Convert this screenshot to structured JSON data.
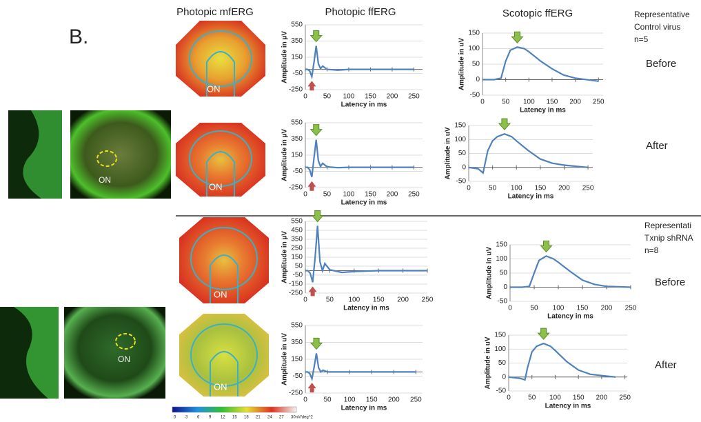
{
  "panel_label": "B.",
  "headers": [
    "Photopic mfERG",
    "Photopic ffERG",
    "Scotopic ffERG"
  ],
  "groups": [
    {
      "title": [
        "Representative",
        "Control virus",
        "n=5"
      ],
      "conditions": [
        "Before",
        "After"
      ]
    },
    {
      "title": [
        "Representati",
        "Txnip shRNA",
        "n=8"
      ],
      "conditions": [
        "Before",
        "After"
      ]
    }
  ],
  "photo_labels": [
    "ON",
    "ON"
  ],
  "heatmap_labels": [
    "ON",
    "ON",
    "ON",
    "ON"
  ],
  "colorbar_labels": [
    "0",
    "3",
    "6",
    "9",
    "12",
    "15",
    "18",
    "21",
    "24",
    "27",
    "30nV/deg^2"
  ],
  "chart_data": [
    {
      "type": "line",
      "ylabel": "Amplitude in µV",
      "xlabel": "Latency in ms",
      "x": [
        0,
        5,
        10,
        15,
        20,
        25,
        30,
        35,
        40,
        50,
        75,
        100,
        150,
        200,
        250
      ],
      "series": [
        {
          "color": "#4f81bd",
          "values": [
            0,
            0,
            -20,
            -90,
            90,
            290,
            70,
            10,
            40,
            0,
            -10,
            0,
            0,
            0,
            0
          ]
        }
      ],
      "xlim": [
        0,
        270
      ],
      "ylim": [
        -250,
        550
      ],
      "xticks": [
        0,
        50,
        100,
        150,
        200,
        250
      ],
      "yticks": [
        550,
        350,
        150,
        -50,
        -250
      ]
    },
    {
      "type": "line",
      "ylabel": "Amplitude in uV",
      "xlabel": "Latency in ms",
      "x": [
        0,
        25,
        40,
        50,
        60,
        75,
        90,
        100,
        125,
        150,
        175,
        200,
        250
      ],
      "series": [
        {
          "color": "#4f81bd",
          "values": [
            0,
            0,
            5,
            60,
            95,
            105,
            100,
            90,
            60,
            35,
            15,
            5,
            -5
          ]
        }
      ],
      "xlim": [
        0,
        260
      ],
      "ylim": [
        -50,
        150
      ],
      "xticks": [
        0,
        50,
        100,
        150,
        200,
        250
      ],
      "yticks": [
        150,
        100,
        50,
        0,
        -50
      ]
    },
    {
      "type": "line",
      "ylabel": "Amplitude in µV",
      "xlabel": "Latency in ms",
      "x": [
        0,
        5,
        10,
        15,
        20,
        25,
        30,
        35,
        40,
        50,
        75,
        100,
        150,
        200,
        250
      ],
      "series": [
        {
          "color": "#4f81bd",
          "values": [
            0,
            0,
            -30,
            -120,
            120,
            340,
            80,
            10,
            50,
            5,
            -5,
            0,
            0,
            0,
            0
          ]
        }
      ],
      "xlim": [
        0,
        270
      ],
      "ylim": [
        -250,
        550
      ],
      "xticks": [
        0,
        50,
        100,
        150,
        200,
        250
      ],
      "yticks": [
        550,
        350,
        150,
        -50,
        -250
      ]
    },
    {
      "type": "line",
      "ylabel": "Amplitude in uV",
      "xlabel": "Latency in ms",
      "x": [
        0,
        20,
        30,
        40,
        50,
        60,
        75,
        90,
        100,
        125,
        150,
        175,
        200,
        250
      ],
      "series": [
        {
          "color": "#4f81bd",
          "values": [
            0,
            -5,
            -20,
            60,
            95,
            110,
            120,
            110,
            95,
            60,
            30,
            15,
            8,
            0
          ]
        }
      ],
      "xlim": [
        0,
        260
      ],
      "ylim": [
        -50,
        150
      ],
      "xticks": [
        0,
        50,
        100,
        150,
        200,
        250
      ],
      "yticks": [
        150,
        100,
        50,
        0,
        -50
      ]
    },
    {
      "type": "line",
      "ylabel": "Amplitude in µV",
      "xlabel": "Latency in ms",
      "x": [
        0,
        5,
        10,
        15,
        20,
        25,
        30,
        35,
        40,
        50,
        75,
        100,
        150,
        200,
        250
      ],
      "series": [
        {
          "color": "#4f81bd",
          "values": [
            0,
            0,
            -30,
            -130,
            150,
            500,
            100,
            0,
            80,
            10,
            -20,
            -10,
            0,
            0,
            0
          ]
        }
      ],
      "xlim": [
        0,
        250
      ],
      "ylim": [
        -250,
        550
      ],
      "xticks": [
        0,
        50,
        100,
        150,
        200,
        250
      ],
      "yticks": [
        550,
        450,
        350,
        250,
        150,
        50,
        -50,
        -150,
        -250
      ]
    },
    {
      "type": "line",
      "ylabel": "Amplitude in uV",
      "xlabel": "Latency in ms",
      "x": [
        0,
        25,
        40,
        50,
        60,
        75,
        90,
        100,
        125,
        150,
        175,
        200,
        250
      ],
      "series": [
        {
          "color": "#4f81bd",
          "values": [
            0,
            0,
            3,
            50,
            95,
            110,
            100,
            88,
            55,
            25,
            10,
            3,
            0
          ]
        }
      ],
      "xlim": [
        0,
        250
      ],
      "ylim": [
        -50,
        150
      ],
      "xticks": [
        0,
        50,
        100,
        150,
        200,
        250
      ],
      "yticks": [
        150,
        100,
        50,
        0,
        -50
      ]
    },
    {
      "type": "line",
      "ylabel": "Amplitude in uV",
      "xlabel": "Latency in ms",
      "x": [
        0,
        5,
        10,
        15,
        20,
        25,
        30,
        35,
        40,
        50,
        75,
        100,
        150,
        200,
        250
      ],
      "series": [
        {
          "color": "#4f81bd",
          "values": [
            0,
            0,
            -20,
            -80,
            60,
            220,
            50,
            0,
            20,
            0,
            0,
            0,
            0,
            0,
            0
          ]
        }
      ],
      "xlim": [
        0,
        265
      ],
      "ylim": [
        -250,
        550
      ],
      "xticks": [
        0,
        50,
        100,
        150,
        200,
        250
      ],
      "yticks": [
        550,
        350,
        150,
        -50,
        -250
      ]
    },
    {
      "type": "line",
      "ylabel": "Amplitude in uV",
      "xlabel": "Latency in ms",
      "x": [
        0,
        25,
        35,
        40,
        50,
        60,
        75,
        90,
        100,
        125,
        150,
        175,
        200,
        230
      ],
      "series": [
        {
          "color": "#4f81bd",
          "values": [
            0,
            -5,
            -10,
            30,
            90,
            110,
            120,
            110,
            95,
            55,
            25,
            10,
            5,
            0
          ]
        }
      ],
      "xlim": [
        0,
        255
      ],
      "ylim": [
        -50,
        150
      ],
      "xticks": [
        0,
        50,
        100,
        150,
        200,
        250
      ],
      "yticks": [
        150,
        100,
        50,
        0,
        -50
      ]
    }
  ]
}
